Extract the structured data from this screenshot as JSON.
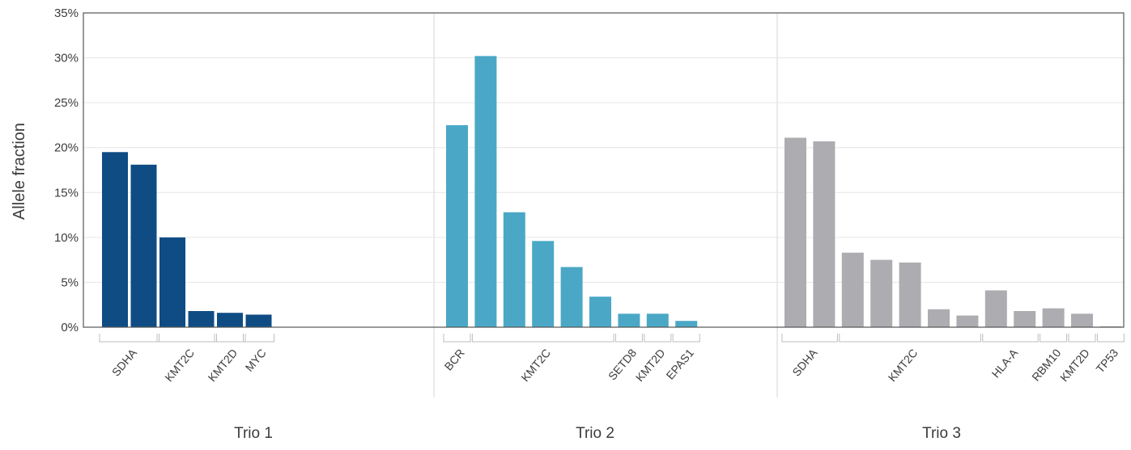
{
  "chart_data": {
    "type": "bar",
    "title": "",
    "xlabel": "",
    "ylabel": "Allele fraction",
    "ylim": [
      0,
      35
    ],
    "y_ticks": [
      "0%",
      "5%",
      "10%",
      "15%",
      "20%",
      "25%",
      "30%",
      "35%"
    ],
    "grid": "horizontal",
    "legend": "none",
    "groups": [
      {
        "name": "Trio 1",
        "color": "#0f4c84",
        "values": [
          19.5,
          18.1,
          10.0,
          1.8,
          1.6,
          1.4
        ],
        "genes": [
          {
            "label": "SDHA",
            "span": 2
          },
          {
            "label": "KMT2C",
            "span": 2
          },
          {
            "label": "KMT2D",
            "span": 1
          },
          {
            "label": "MYC",
            "span": 1
          }
        ]
      },
      {
        "name": "Trio 2",
        "color": "#4aa8c6",
        "values": [
          22.5,
          30.2,
          12.8,
          9.6,
          6.7,
          3.4,
          1.5,
          1.5,
          0.7
        ],
        "genes": [
          {
            "label": "BCR",
            "span": 1
          },
          {
            "label": "KMT2C",
            "span": 5
          },
          {
            "label": "SETD8",
            "span": 1
          },
          {
            "label": "KMT2D",
            "span": 1
          },
          {
            "label": "EPAS1",
            "span": 1
          }
        ]
      },
      {
        "name": "Trio 3",
        "color": "#adacb0",
        "values": [
          21.1,
          20.7,
          8.3,
          7.5,
          7.2,
          2.0,
          1.3,
          4.1,
          1.8,
          2.1,
          1.5,
          0.1
        ],
        "genes": [
          {
            "label": "SDHA",
            "span": 2
          },
          {
            "label": "KMT2C",
            "span": 5
          },
          {
            "label": "HLA-A",
            "span": 2
          },
          {
            "label": "RBM10",
            "span": 1
          },
          {
            "label": "KMT2D",
            "span": 1
          },
          {
            "label": "TP53",
            "span": 1
          }
        ]
      }
    ]
  }
}
